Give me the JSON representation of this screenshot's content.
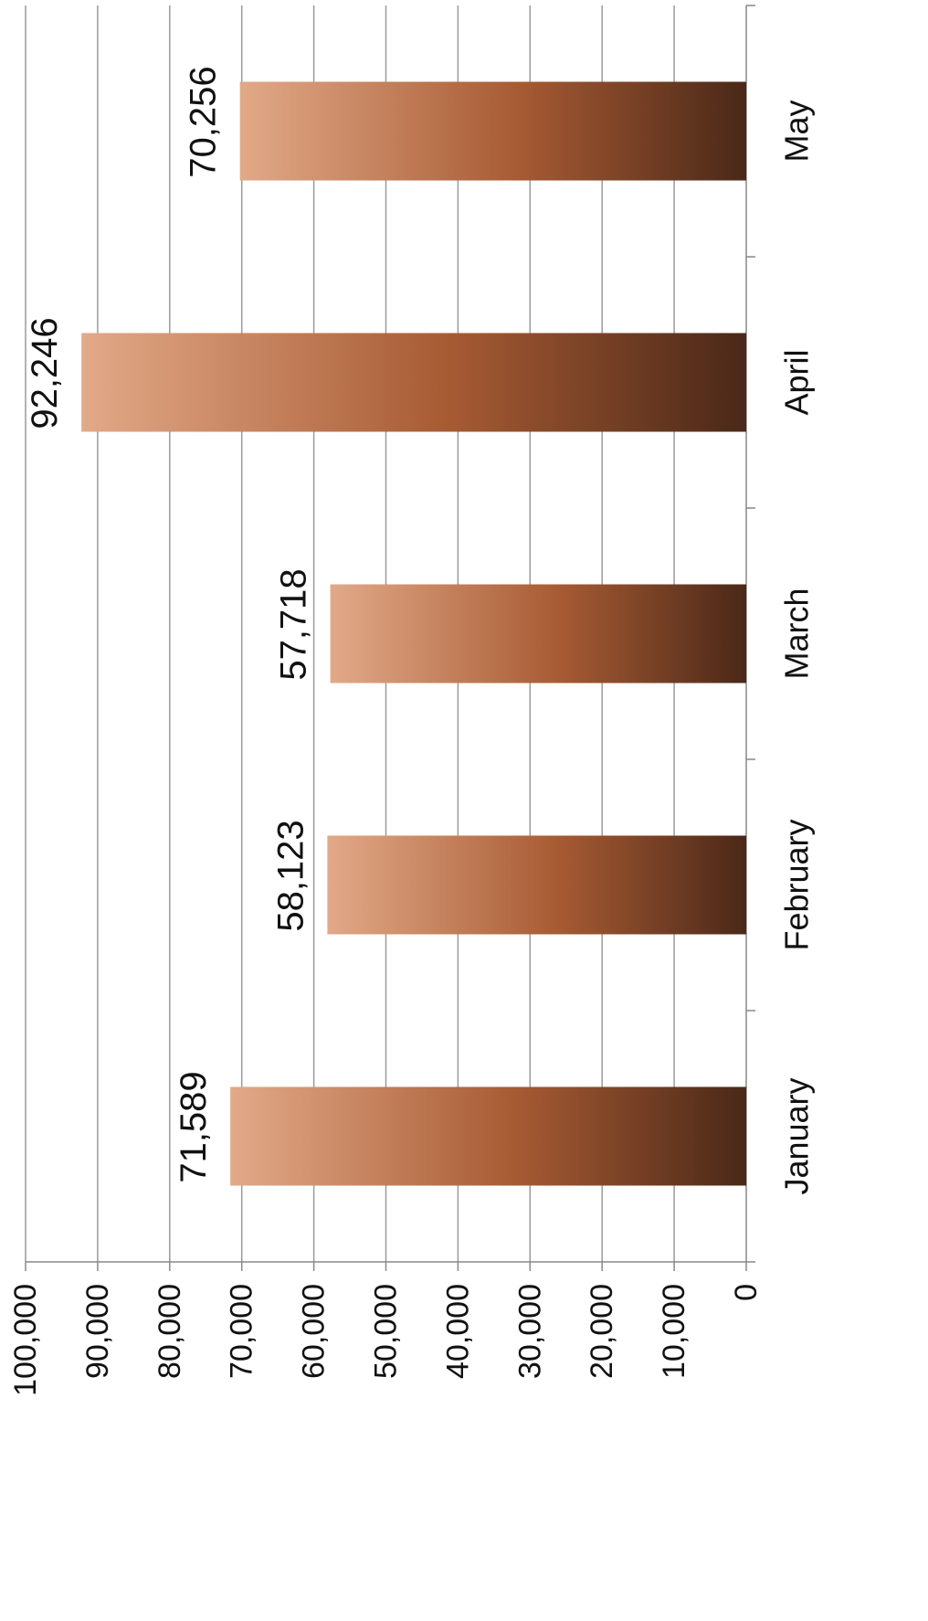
{
  "chart_data": {
    "type": "bar",
    "orientation": "vertical",
    "categories": [
      "January",
      "February",
      "March",
      "April",
      "May"
    ],
    "values": [
      71589,
      58123,
      57718,
      92246,
      70256
    ],
    "data_labels": [
      "71,589",
      "58,123",
      "57,718",
      "92,246",
      "70,256"
    ],
    "y_ticks": [
      "0",
      "10,000",
      "20,000",
      "30,000",
      "40,000",
      "50,000",
      "60,000",
      "70,000",
      "80,000",
      "90,000",
      "100,000"
    ],
    "ylim": [
      0,
      100000
    ],
    "grid": true,
    "legend": "none",
    "title": "",
    "xlabel": "",
    "ylabel": "",
    "colors": {
      "bar_light": "#e2a988",
      "bar_mid": "#a75b33",
      "bar_dark": "#4a2818",
      "grid": "#9a9a9a",
      "axis": "#888888"
    }
  }
}
